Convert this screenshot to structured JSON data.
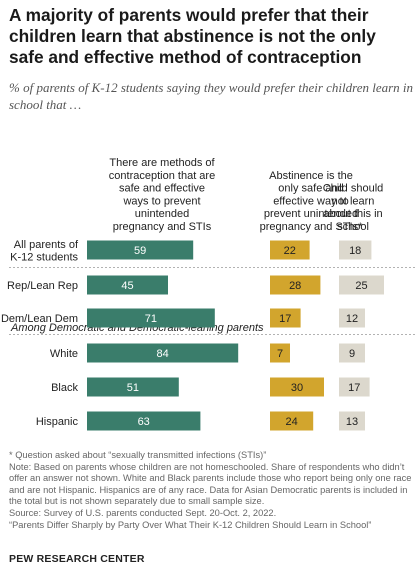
{
  "title": "A majority of parents would prefer that their children learn that abstinence is not the only safe and effective method of contraception",
  "subtitle": "% of parents of K-12 students saying they would prefer their children learn in school that …",
  "chart_data": {
    "type": "bar",
    "columns": [
      {
        "name": "There are methods of contraception that are safe and effective ways to prevent unintended pregnancy and STIs",
        "lines": [
          "There are methods of",
          "contraception that are",
          "safe and effective",
          "ways to prevent",
          "unintended",
          "pregnancy and STIs"
        ],
        "color": "#3a7d6b"
      },
      {
        "name": "Abstinence is the only safe and effective way to prevent unintended pregnancy and STIs*",
        "lines": [
          "Abstinence is the",
          "only safe and",
          "effective way to",
          "prevent unintended",
          "pregnancy and STIs*"
        ],
        "color": "#d2a52d"
      },
      {
        "name": "Child should not learn about this in school",
        "lines": [
          "Child should",
          "not learn",
          "about this in",
          "school"
        ],
        "color": "#dcd8cd"
      }
    ],
    "section_label": "Among Democratic and Democratic-leaning parents",
    "rows": [
      {
        "label": [
          "All parents of",
          "K-12 students"
        ],
        "values": [
          59,
          22,
          18
        ]
      },
      {
        "label": [
          "Rep/Lean Rep"
        ],
        "values": [
          45,
          28,
          25
        ]
      },
      {
        "label": [
          "Dem/Lean Dem"
        ],
        "values": [
          71,
          17,
          12
        ]
      },
      {
        "label": [
          "White"
        ],
        "values": [
          84,
          7,
          9
        ]
      },
      {
        "label": [
          "Black"
        ],
        "values": [
          51,
          30,
          17
        ]
      },
      {
        "label": [
          "Hispanic"
        ],
        "values": [
          63,
          24,
          13
        ]
      }
    ]
  },
  "notes": [
    "* Question asked about “sexually transmitted infections (STIs)”",
    "Note: Based on parents whose children are not homeschooled. Share of respondents who didn’t offer an answer not shown. White and Black parents include those who report being only one race and are not Hispanic. Hispanics are of any race. Data for Asian Democratic parents is included in the total but is not shown separately due to small sample size.",
    "Source: Survey of U.S. parents conducted Sept. 20-Oct. 2, 2022.",
    "“Parents Differ Sharply by Party Over What Their K-12 Children Should Learn in School”"
  ],
  "org": "PEW RESEARCH CENTER"
}
